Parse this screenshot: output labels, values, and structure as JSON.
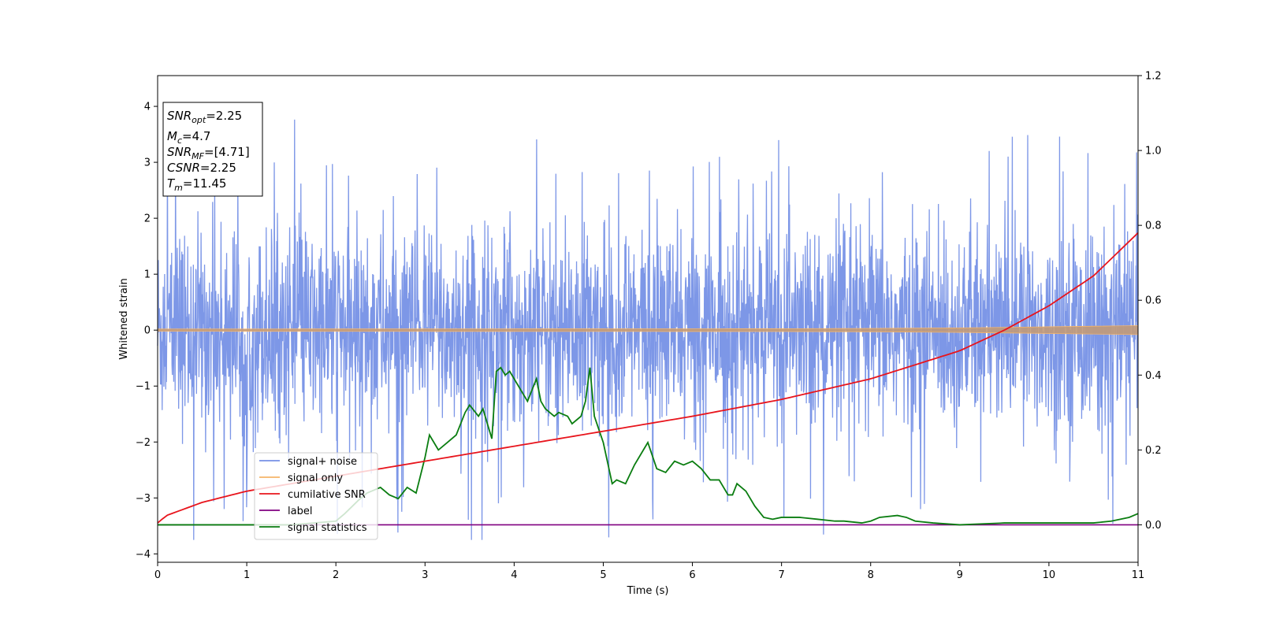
{
  "chart_data": {
    "type": "line",
    "xlabel": "Time (s)",
    "ylabel": "Whitened strain",
    "xlim": [
      0,
      11
    ],
    "ylim": [
      -4.15,
      4.55
    ],
    "y2lim": [
      -0.1,
      1.2
    ],
    "x_ticks": [
      "0",
      "1",
      "2",
      "3",
      "4",
      "5",
      "6",
      "7",
      "8",
      "9",
      "10",
      "11"
    ],
    "y_ticks": [
      "−4",
      "−3",
      "−2",
      "−1",
      "0",
      "1",
      "2",
      "3",
      "4"
    ],
    "y2_ticks": [
      "0.0",
      "0.2",
      "0.4",
      "0.6",
      "0.8",
      "1.0",
      "1.2"
    ],
    "grid": false,
    "legend_position": "lower-left",
    "colors": {
      "signal_noise": "#7691e6",
      "signal_only": "#f5b56a",
      "cumulative_snr": "#e8141c",
      "label": "#800080",
      "signal_statistics": "#0a7d10"
    },
    "legend": [
      {
        "name": "signal+ noise",
        "color": "#7691e6"
      },
      {
        "name": "signal only",
        "color": "#f5b56a"
      },
      {
        "name": "cumilative SNR",
        "color": "#e8141c"
      },
      {
        "name": "label",
        "color": "#800080"
      },
      {
        "name": "signal statistics",
        "color": "#0a7d10"
      }
    ],
    "info_box": {
      "snr_opt": "=2.25",
      "mc": "=4.7",
      "snr_mf": "=[4.71]",
      "csnr": "=2.25",
      "tm": "=11.45"
    },
    "series": [
      {
        "name": "signal+ noise",
        "axis": "left",
        "kind": "noise",
        "envelope": {
          "x": [
            0,
            11
          ],
          "typical_range": [
            -2.2,
            2.4
          ],
          "peak_max": 3.95,
          "peak_min": -3.75
        }
      },
      {
        "name": "signal only",
        "axis": "left",
        "kind": "chirp",
        "envelope": {
          "x": [
            0,
            7,
            8,
            9,
            10,
            11
          ],
          "amplitude": [
            0.02,
            0.025,
            0.03,
            0.04,
            0.06,
            0.08
          ]
        }
      },
      {
        "name": "cumilative SNR",
        "axis": "right",
        "x": [
          0,
          0.1,
          0.5,
          1,
          2,
          3,
          4,
          5,
          6,
          7,
          8,
          9,
          9.5,
          10,
          10.5,
          11
        ],
        "y": [
          0.005,
          0.025,
          0.06,
          0.09,
          0.13,
          0.17,
          0.21,
          0.25,
          0.29,
          0.335,
          0.39,
          0.465,
          0.52,
          0.585,
          0.665,
          0.78
        ]
      },
      {
        "name": "label",
        "axis": "right",
        "x": [
          0,
          11
        ],
        "y": [
          0.0,
          0.0
        ]
      },
      {
        "name": "signal statistics",
        "axis": "right",
        "x": [
          0,
          0.5,
          1,
          1.5,
          2,
          2.1,
          2.25,
          2.35,
          2.5,
          2.6,
          2.7,
          2.8,
          2.9,
          3.0,
          3.05,
          3.15,
          3.25,
          3.35,
          3.45,
          3.5,
          3.6,
          3.65,
          3.75,
          3.8,
          3.85,
          3.9,
          3.95,
          4.05,
          4.15,
          4.25,
          4.3,
          4.35,
          4.45,
          4.5,
          4.6,
          4.65,
          4.75,
          4.8,
          4.85,
          4.9,
          5.0,
          5.1,
          5.15,
          5.25,
          5.35,
          5.45,
          5.5,
          5.6,
          5.7,
          5.8,
          5.9,
          6.0,
          6.1,
          6.2,
          6.3,
          6.4,
          6.45,
          6.5,
          6.55,
          6.6,
          6.7,
          6.8,
          6.9,
          7.0,
          7.1,
          7.2,
          7.4,
          7.6,
          7.7,
          7.9,
          8.0,
          8.1,
          8.3,
          8.4,
          8.5,
          8.7,
          9.0,
          9.5,
          9.8,
          10.0,
          10.3,
          10.5,
          10.7,
          10.9,
          11.0
        ],
        "y": [
          0.0,
          0.0,
          0.0,
          0.0,
          0.01,
          0.03,
          0.065,
          0.085,
          0.1,
          0.08,
          0.07,
          0.1,
          0.085,
          0.18,
          0.24,
          0.2,
          0.22,
          0.24,
          0.3,
          0.32,
          0.29,
          0.31,
          0.23,
          0.41,
          0.42,
          0.4,
          0.41,
          0.37,
          0.33,
          0.39,
          0.33,
          0.31,
          0.29,
          0.3,
          0.29,
          0.27,
          0.29,
          0.33,
          0.42,
          0.29,
          0.22,
          0.11,
          0.12,
          0.11,
          0.16,
          0.2,
          0.22,
          0.15,
          0.14,
          0.17,
          0.16,
          0.17,
          0.15,
          0.12,
          0.12,
          0.08,
          0.08,
          0.11,
          0.1,
          0.09,
          0.05,
          0.02,
          0.015,
          0.02,
          0.02,
          0.02,
          0.015,
          0.01,
          0.01,
          0.005,
          0.01,
          0.02,
          0.025,
          0.02,
          0.01,
          0.005,
          0.0,
          0.005,
          0.005,
          0.005,
          0.005,
          0.005,
          0.01,
          0.02,
          0.03
        ]
      }
    ]
  }
}
